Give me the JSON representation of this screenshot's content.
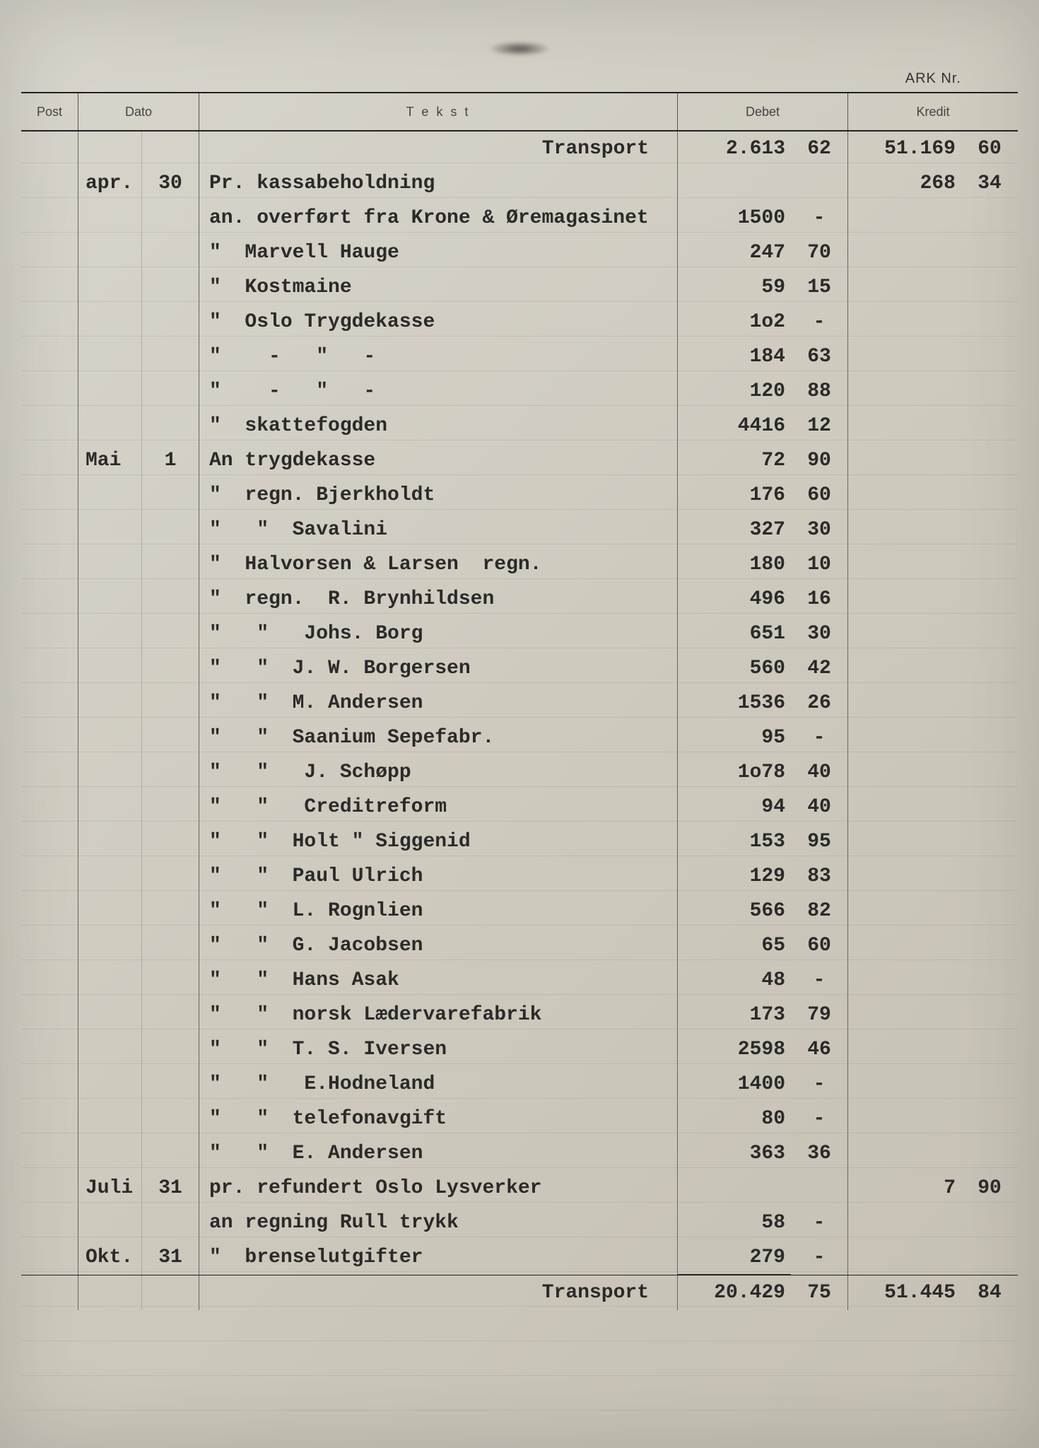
{
  "ark_label": "ARK Nr.",
  "headers": {
    "post": "Post",
    "dato": "Dato",
    "tekst": "T e k s t",
    "debet": "Debet",
    "kredit": "Kredit"
  },
  "transport_label": "Transport",
  "opening": {
    "debet_w": "2.613",
    "debet_d": "62",
    "kredit_w": "51.169",
    "kredit_d": "60"
  },
  "rows": [
    {
      "month": "apr.",
      "day": "30",
      "tekst": "Pr. kassabeholdning",
      "dw": "",
      "dd": "",
      "kw": "268",
      "kd": "34"
    },
    {
      "month": "",
      "day": "",
      "tekst": "an. overført fra Krone & Øremagasinet",
      "dw": "1500",
      "dd": "-",
      "kw": "",
      "kd": ""
    },
    {
      "month": "",
      "day": "",
      "tekst": "\"  Marvell Hauge",
      "dw": "247",
      "dd": "70",
      "kw": "",
      "kd": ""
    },
    {
      "month": "",
      "day": "",
      "tekst": "\"  Kostmaine",
      "dw": "59",
      "dd": "15",
      "kw": "",
      "kd": ""
    },
    {
      "month": "",
      "day": "",
      "tekst": "\"  Oslo Trygdekasse",
      "dw": "1o2",
      "dd": "-",
      "kw": "",
      "kd": ""
    },
    {
      "month": "",
      "day": "",
      "tekst": "\"    -   \"   -",
      "dw": "184",
      "dd": "63",
      "kw": "",
      "kd": ""
    },
    {
      "month": "",
      "day": "",
      "tekst": "\"    -   \"   -",
      "dw": "120",
      "dd": "88",
      "kw": "",
      "kd": ""
    },
    {
      "month": "",
      "day": "",
      "tekst": "\"  skattefogden",
      "dw": "4416",
      "dd": "12",
      "kw": "",
      "kd": ""
    },
    {
      "month": "Mai",
      "day": "1",
      "tekst": "An trygdekasse",
      "dw": "72",
      "dd": "90",
      "kw": "",
      "kd": ""
    },
    {
      "month": "",
      "day": "",
      "tekst": "\"  regn. Bjerkholdt",
      "dw": "176",
      "dd": "60",
      "kw": "",
      "kd": ""
    },
    {
      "month": "",
      "day": "",
      "tekst": "\"   \"  Savalini",
      "dw": "327",
      "dd": "30",
      "kw": "",
      "kd": ""
    },
    {
      "month": "",
      "day": "",
      "tekst": "\"  Halvorsen & Larsen  regn.",
      "dw": "180",
      "dd": "10",
      "kw": "",
      "kd": ""
    },
    {
      "month": "",
      "day": "",
      "tekst": "\"  regn.  R. Brynhildsen",
      "dw": "496",
      "dd": "16",
      "kw": "",
      "kd": ""
    },
    {
      "month": "",
      "day": "",
      "tekst": "\"   \"   Johs. Borg",
      "dw": "651",
      "dd": "30",
      "kw": "",
      "kd": ""
    },
    {
      "month": "",
      "day": "",
      "tekst": "\"   \"  J. W. Borgersen",
      "dw": "560",
      "dd": "42",
      "kw": "",
      "kd": ""
    },
    {
      "month": "",
      "day": "",
      "tekst": "\"   \"  M. Andersen",
      "dw": "1536",
      "dd": "26",
      "kw": "",
      "kd": ""
    },
    {
      "month": "",
      "day": "",
      "tekst": "\"   \"  Saanium Sepefabr.",
      "dw": "95",
      "dd": "-",
      "kw": "",
      "kd": ""
    },
    {
      "month": "",
      "day": "",
      "tekst": "\"   \"   J. Schøpp",
      "dw": "1o78",
      "dd": "40",
      "kw": "",
      "kd": ""
    },
    {
      "month": "",
      "day": "",
      "tekst": "\"   \"   Creditreform",
      "dw": "94",
      "dd": "40",
      "kw": "",
      "kd": ""
    },
    {
      "month": "",
      "day": "",
      "tekst": "\"   \"  Holt \" Siggenid",
      "dw": "153",
      "dd": "95",
      "kw": "",
      "kd": ""
    },
    {
      "month": "",
      "day": "",
      "tekst": "\"   \"  Paul Ulrich",
      "dw": "129",
      "dd": "83",
      "kw": "",
      "kd": ""
    },
    {
      "month": "",
      "day": "",
      "tekst": "\"   \"  L. Rognlien",
      "dw": "566",
      "dd": "82",
      "kw": "",
      "kd": ""
    },
    {
      "month": "",
      "day": "",
      "tekst": "\"   \"  G. Jacobsen",
      "dw": "65",
      "dd": "60",
      "kw": "",
      "kd": ""
    },
    {
      "month": "",
      "day": "",
      "tekst": "\"   \"  Hans Asak",
      "dw": "48",
      "dd": "-",
      "kw": "",
      "kd": ""
    },
    {
      "month": "",
      "day": "",
      "tekst": "\"   \"  norsk Lædervarefabrik",
      "dw": "173",
      "dd": "79",
      "kw": "",
      "kd": ""
    },
    {
      "month": "",
      "day": "",
      "tekst": "\"   \"  T. S. Iversen",
      "dw": "2598",
      "dd": "46",
      "kw": "",
      "kd": ""
    },
    {
      "month": "",
      "day": "",
      "tekst": "\"   \"   E.Hodneland",
      "dw": "1400",
      "dd": "-",
      "kw": "",
      "kd": ""
    },
    {
      "month": "",
      "day": "",
      "tekst": "\"   \"  telefonavgift",
      "dw": "80",
      "dd": "-",
      "kw": "",
      "kd": ""
    },
    {
      "month": "",
      "day": "",
      "tekst": "\"   \"  E. Andersen",
      "dw": "363",
      "dd": "36",
      "kw": "",
      "kd": ""
    },
    {
      "month": "Juli",
      "day": "31",
      "tekst": "pr. refundert Oslo Lysverker",
      "dw": "",
      "dd": "",
      "kw": "7",
      "kd": "90"
    },
    {
      "month": "",
      "day": "",
      "tekst": "an regning Rull trykk",
      "dw": "58",
      "dd": "-",
      "kw": "",
      "kd": ""
    },
    {
      "month": "Okt.",
      "day": "31",
      "tekst": "\"  brenselutgifter",
      "dw": "279",
      "dd": "-",
      "kw": "",
      "kd": ""
    }
  ],
  "closing": {
    "debet_w": "20.429",
    "debet_d": "75",
    "kredit_w": "51.445",
    "kredit_d": "84"
  }
}
